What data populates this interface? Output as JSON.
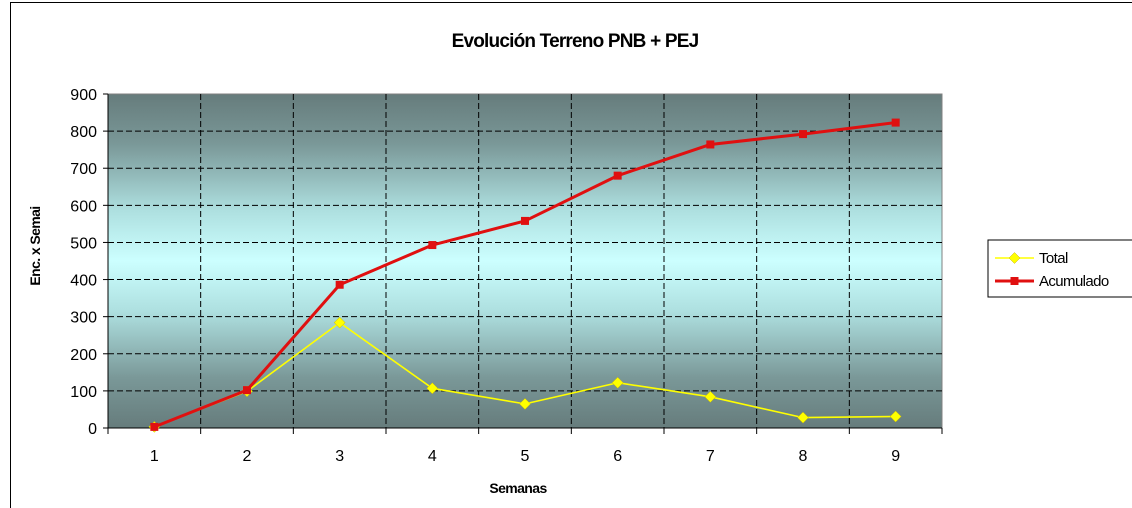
{
  "chart_data": {
    "type": "line",
    "title": "Evolución Terreno PNB + PEJ",
    "xlabel": "Semanas",
    "ylabel": "Enc. x Semai",
    "categories": [
      "1",
      "2",
      "3",
      "4",
      "5",
      "6",
      "7",
      "8",
      "9"
    ],
    "ylim": [
      0,
      900
    ],
    "yticks": [
      "0",
      "100",
      "200",
      "300",
      "400",
      "500",
      "600",
      "700",
      "800",
      "900"
    ],
    "grid": true,
    "legend_position": "right",
    "series": [
      {
        "name": "Total",
        "color": "#ffff00",
        "marker": "diamond",
        "values": [
          3,
          99,
          284,
          107,
          65,
          122,
          84,
          28,
          31
        ]
      },
      {
        "name": "Acumulado",
        "color": "#e01010",
        "marker": "square",
        "values": [
          3,
          102,
          386,
          493,
          558,
          680,
          764,
          792,
          823
        ]
      }
    ]
  }
}
